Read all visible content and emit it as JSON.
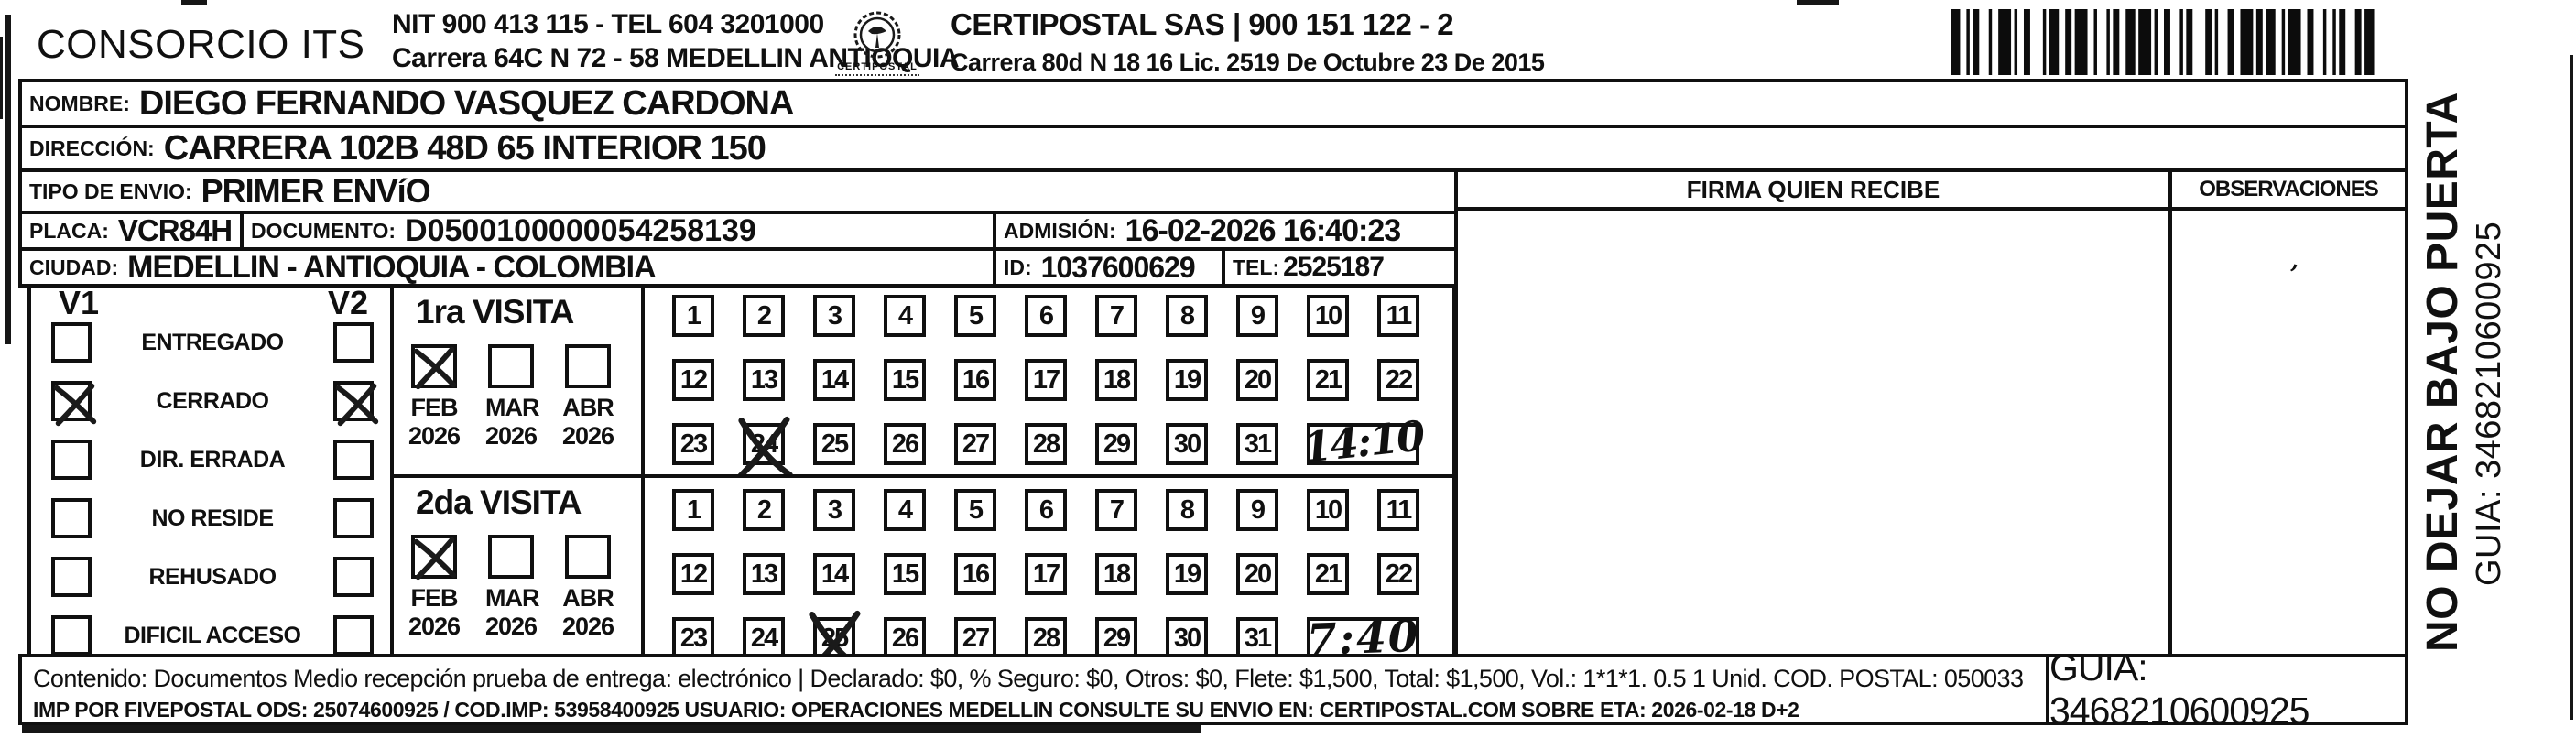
{
  "header": {
    "company": "CONSORCIO ITS",
    "nit_line1": "NIT 900 413 115 - TEL 604 3201000",
    "nit_line2": "Carrera 64C N 72 - 58 MEDELLIN ANTIOQUIA",
    "logo_text": "CERTIPOSTAL",
    "carrier_line1": "CERTIPOSTAL SAS | 900 151 122 - 2",
    "carrier_line2": "Carrera 80d N 18 16  Lic. 2519 De Octubre 23 De 2015"
  },
  "recipient": {
    "nombre_label": "NOMBRE:",
    "nombre": "DIEGO FERNANDO VASQUEZ CARDONA",
    "direccion_label": "DIRECCIÓN:",
    "direccion": "CARRERA 102B 48D 65 INTERIOR 150",
    "tipo_label": "TIPO DE ENVIO:",
    "tipo": "PRIMER ENVíO",
    "placa_label": "PLACA:",
    "placa": "VCR84H",
    "documento_label": "DOCUMENTO:",
    "documento": "D0500100000054258139",
    "admision_label": "ADMISIÓN:",
    "admision": "16-02-2026 16:40:23",
    "ciudad_label": "CIUDAD:",
    "ciudad": "MEDELLIN - ANTIOQUIA - COLOMBIA",
    "id_label": "ID:",
    "id": "1037600629",
    "tel_label": "TEL:",
    "tel": "2525187"
  },
  "status": {
    "v1_header": "V1",
    "v2_header": "V2",
    "items": [
      {
        "label": "ENTREGADO",
        "v1": false,
        "v2": false
      },
      {
        "label": "CERRADO",
        "v1": true,
        "v2": true
      },
      {
        "label": "DIR. ERRADA",
        "v1": false,
        "v2": false
      },
      {
        "label": "NO RESIDE",
        "v1": false,
        "v2": false
      },
      {
        "label": "REHUSADO",
        "v1": false,
        "v2": false
      },
      {
        "label": "DIFICIL ACCESO",
        "v1": false,
        "v2": false
      }
    ]
  },
  "visits": [
    {
      "title": "1ra VISITA",
      "months": [
        {
          "label": "FEB",
          "year": "2026",
          "checked": true
        },
        {
          "label": "MAR",
          "year": "2026",
          "checked": false
        },
        {
          "label": "ABR",
          "year": "2026",
          "checked": false
        }
      ],
      "days": [
        1,
        2,
        3,
        4,
        5,
        6,
        7,
        8,
        9,
        10,
        11,
        12,
        13,
        14,
        15,
        16,
        17,
        18,
        19,
        20,
        21,
        22,
        23,
        24,
        25,
        26,
        27,
        28,
        29,
        30,
        31
      ],
      "crossed_day": 24,
      "time_note": "14:10"
    },
    {
      "title": "2da VISITA",
      "months": [
        {
          "label": "FEB",
          "year": "2026",
          "checked": true
        },
        {
          "label": "MAR",
          "year": "2026",
          "checked": false
        },
        {
          "label": "ABR",
          "year": "2026",
          "checked": false
        }
      ],
      "days": [
        1,
        2,
        3,
        4,
        5,
        6,
        7,
        8,
        9,
        10,
        11,
        12,
        13,
        14,
        15,
        16,
        17,
        18,
        19,
        20,
        21,
        22,
        23,
        24,
        25,
        26,
        27,
        28,
        29,
        30,
        31
      ],
      "crossed_day": 25,
      "time_note": "7:40"
    }
  ],
  "sections": {
    "firma_header": "FIRMA QUIEN RECIBE",
    "observaciones_header": "OBSERVACIONES"
  },
  "side_note": {
    "line1": "NO DEJAR BAJO PUERTA",
    "line2": "GUIA: 3468210600925"
  },
  "footer": {
    "line1": "Contenido: Documentos Medio recepción prueba de entrega: electrónico | Declarado: $0, % Seguro: $0, Otros: $0, Flete: $1,500, Total: $1,500, Vol.: 1*1*1. 0.5  1 Unid. COD. POSTAL: 050033",
    "line2": "IMP POR FIVEPOSTAL ODS: 25074600925 / COD.IMP: 53958400925 USUARIO: OPERACIONES MEDELLIN CONSULTE SU ENVIO EN: CERTIPOSTAL.COM SOBRE ETA: 2026-02-18 D+2",
    "guia": "GUIA: 3468210600925"
  }
}
